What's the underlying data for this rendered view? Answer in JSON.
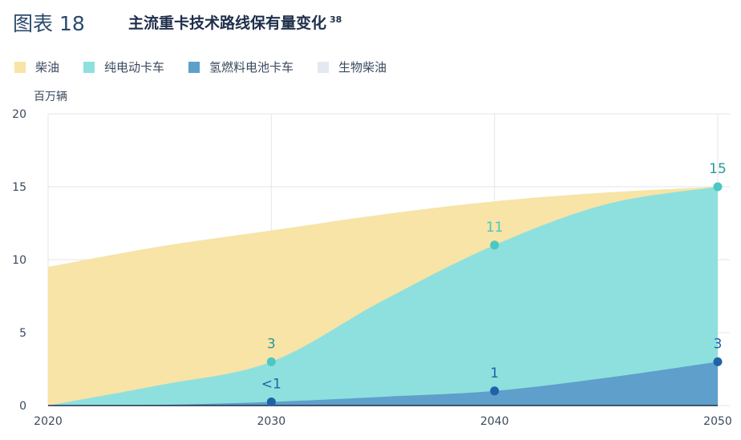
{
  "figure": {
    "label": "图表 18",
    "title": "主流重卡技术路线保有量变化",
    "note_ref": "38"
  },
  "legend": [
    {
      "name": "柴油",
      "color": "#f7e4a6"
    },
    {
      "name": "纯电动卡车",
      "color": "#8ee0de"
    },
    {
      "name": "氢燃料电池卡车",
      "color": "#5f9fcc"
    },
    {
      "name": "生物柴油",
      "color": "#e4e8f0"
    }
  ],
  "chart_data": {
    "type": "area",
    "stacked": true,
    "ylabel": "百万辆",
    "ylim": [
      0,
      20
    ],
    "yticks": [
      0,
      5,
      10,
      15,
      20
    ],
    "xticks": [
      "2020",
      "2030",
      "2040",
      "2050"
    ],
    "grid": true,
    "legend_position": "top-left",
    "series": [
      {
        "name": "氢燃料电池卡车",
        "color": "#5f9fcc",
        "x": [
          2020,
          2025,
          2030,
          2035,
          2040,
          2045,
          2050
        ],
        "cumulative": [
          0,
          0.05,
          0.25,
          0.6,
          1,
          1.9,
          3
        ]
      },
      {
        "name": "纯电动卡车",
        "color": "#8ee0de",
        "x": [
          2020,
          2025,
          2030,
          2035,
          2040,
          2045,
          2050
        ],
        "cumulative": [
          0,
          1.4,
          3,
          7.2,
          11,
          13.8,
          15
        ]
      },
      {
        "name": "柴油",
        "color": "#f7e4a6",
        "x": [
          2020,
          2025,
          2030,
          2035,
          2040,
          2045,
          2050
        ],
        "cumulative": [
          9.5,
          10.9,
          12,
          13.1,
          14,
          14.6,
          15
        ]
      },
      {
        "name": "生物柴油",
        "color": "#e4e8f0",
        "x": [
          2020,
          2025,
          2030,
          2035,
          2040,
          2045,
          2050
        ],
        "cumulative": [
          9.5,
          10.9,
          12,
          13.1,
          14,
          14.6,
          15
        ]
      }
    ],
    "markers": [
      {
        "series": "纯电动卡车",
        "x": 2030,
        "y": 3,
        "label": "3",
        "color": "#4cc7c2",
        "label_color": "#2a9a96"
      },
      {
        "series": "纯电动卡车",
        "x": 2040,
        "y": 11,
        "label": "11",
        "color": "#4cc7c2",
        "label_color": "#4cc7c2"
      },
      {
        "series": "纯电动卡车",
        "x": 2050,
        "y": 15,
        "label": "15",
        "color": "#4cc7c2",
        "label_color": "#2a9a96"
      },
      {
        "series": "氢燃料电池卡车",
        "x": 2030,
        "y": 0.25,
        "label": "<1",
        "color": "#1f62a8",
        "label_color": "#1f62a8"
      },
      {
        "series": "氢燃料电池卡车",
        "x": 2040,
        "y": 1,
        "label": "1",
        "color": "#1f62a8",
        "label_color": "#1f62a8"
      },
      {
        "series": "氢燃料电池卡车",
        "x": 2050,
        "y": 3,
        "label": "3",
        "color": "#1f62a8",
        "label_color": "#1f62a8"
      }
    ]
  }
}
